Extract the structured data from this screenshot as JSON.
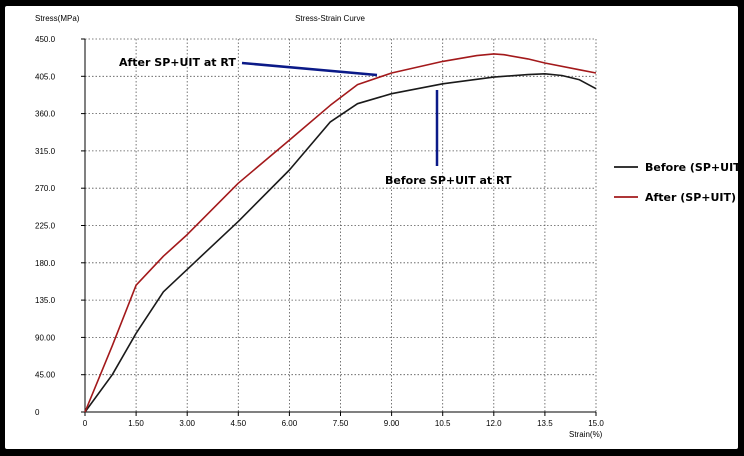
{
  "chart_data": {
    "type": "line",
    "title": "Stress-Strain Curve",
    "xlabel": "Strain(%)",
    "ylabel": "Stress(MPa)",
    "xlim": [
      0,
      15
    ],
    "ylim": [
      0,
      450
    ],
    "grid": true,
    "legend_position": "right",
    "x_ticks": [
      "0",
      "1.50",
      "3.00",
      "4.50",
      "6.00",
      "7.50",
      "9.00",
      "10.5",
      "12.0",
      "13.5",
      "15.0"
    ],
    "y_ticks": [
      "0",
      "45.00",
      "90.00",
      "135.0",
      "180.0",
      "225.0",
      "270.0",
      "315.0",
      "360.0",
      "405.0",
      "450.0"
    ],
    "series": [
      {
        "name": "Before (SP+UIT)",
        "color": "#1a1a1a",
        "x": [
          0,
          0.8,
          1.5,
          2.3,
          3.0,
          4.5,
          6.0,
          7.2,
          8.0,
          9.0,
          10.5,
          12.0,
          13.0,
          13.5,
          14.0,
          14.5,
          15.0
        ],
        "y": [
          0,
          45,
          95,
          145,
          172,
          230,
          292,
          350,
          372,
          384,
          396,
          404,
          407,
          408,
          406,
          401,
          390
        ]
      },
      {
        "name": "After (SP+UIT)",
        "color": "#a3191b",
        "x": [
          0,
          0.8,
          1.5,
          2.3,
          3.0,
          4.5,
          6.0,
          7.2,
          8.0,
          9.0,
          10.5,
          11.5,
          12.0,
          12.3,
          13.0,
          13.5,
          14.5,
          15.0
        ],
        "y": [
          0,
          80,
          153,
          188,
          214,
          276,
          328,
          370,
          395,
          409,
          423,
          430,
          432,
          431,
          426,
          421,
          413,
          409
        ]
      }
    ],
    "annotations": [
      {
        "text": "After SP+UIT at RT",
        "color": "#0b1a88"
      },
      {
        "text": "Before SP+UIT at RT",
        "color": "#0b1a88"
      }
    ]
  }
}
